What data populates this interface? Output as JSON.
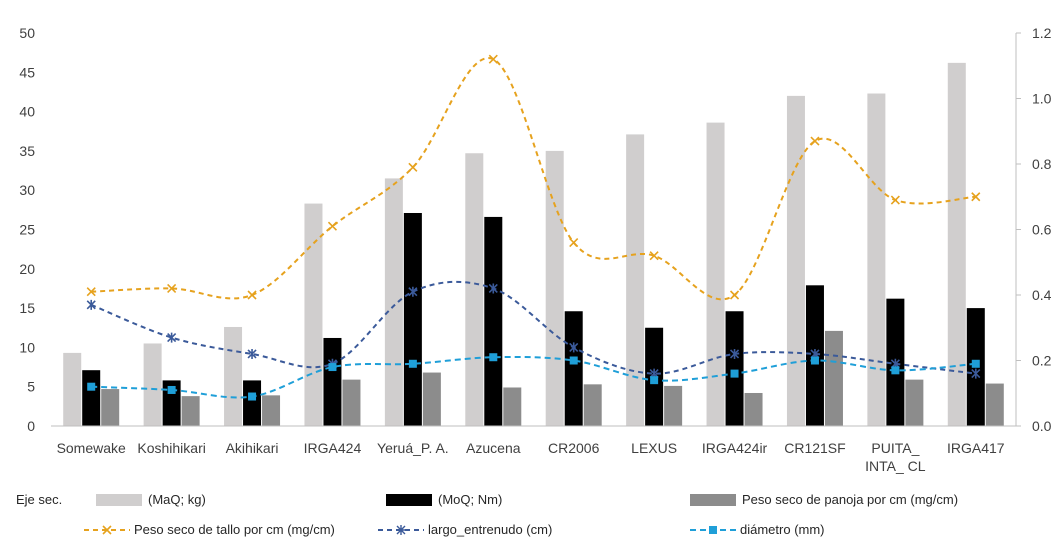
{
  "chart_data": {
    "type": "bar",
    "categories": [
      "Somewake",
      "Koshihikari",
      "Akihikari",
      "IRGA424",
      "Yeruá_P. A.",
      "Azucena",
      "CR2006",
      "LEXUS",
      "IRGA424ir",
      "CR121SF",
      "PUITA_ INTA_ CL",
      "IRGA417"
    ],
    "category_lines": [
      [
        "Somewake"
      ],
      [
        "Koshihikari"
      ],
      [
        "Akihikari"
      ],
      [
        "IRGA424"
      ],
      [
        "Yeruá_P. A."
      ],
      [
        "Azucena"
      ],
      [
        "CR2006"
      ],
      [
        "LEXUS"
      ],
      [
        "IRGA424ir"
      ],
      [
        "CR121SF"
      ],
      [
        "PUITA_",
        "INTA_ CL"
      ],
      [
        "IRGA417"
      ]
    ],
    "series": [
      {
        "name": "(MaQ; kg)",
        "type": "bar",
        "axis": "primary",
        "color": "#d0cece",
        "values": [
          9.3,
          10.5,
          12.6,
          28.3,
          31.5,
          34.7,
          35.0,
          37.1,
          38.6,
          42.0,
          42.3,
          46.2
        ]
      },
      {
        "name": "(MoQ; Nm)",
        "type": "bar",
        "axis": "primary",
        "color": "#000000",
        "values": [
          7.1,
          5.8,
          5.8,
          11.2,
          27.1,
          26.6,
          14.6,
          12.5,
          14.6,
          17.9,
          16.2,
          15.0
        ]
      },
      {
        "name": "Peso seco de panoja por cm (mg/cm)",
        "type": "bar",
        "axis": "primary",
        "color": "#8c8c8c",
        "values": [
          4.7,
          3.8,
          3.9,
          5.9,
          6.8,
          4.9,
          5.3,
          5.1,
          4.2,
          12.1,
          5.9,
          5.4
        ]
      },
      {
        "name": "Peso seco de tallo por cm (mg/cm)",
        "type": "line",
        "axis": "secondary",
        "color": "#e6a21e",
        "dash": "5,4",
        "marker": "x",
        "values": [
          0.41,
          0.42,
          0.4,
          0.61,
          0.79,
          1.12,
          0.56,
          0.52,
          0.4,
          0.87,
          0.69,
          0.7
        ]
      },
      {
        "name": "largo_entrenudo (cm)",
        "type": "line",
        "axis": "secondary",
        "color": "#3b5a9a",
        "dash": "5,4",
        "marker": "star",
        "values": [
          0.37,
          0.27,
          0.22,
          0.19,
          0.41,
          0.42,
          0.24,
          0.16,
          0.22,
          0.22,
          0.19,
          0.16
        ]
      },
      {
        "name": "diámetro (mm)",
        "type": "line",
        "axis": "secondary",
        "color": "#1f9fd8",
        "dash": "6,4",
        "marker": "square",
        "values": [
          0.12,
          0.11,
          0.09,
          0.18,
          0.19,
          0.21,
          0.2,
          0.14,
          0.16,
          0.2,
          0.17,
          0.19
        ]
      }
    ],
    "ylim": [
      0,
      50
    ],
    "yticks": [
      0,
      5,
      10,
      15,
      20,
      25,
      30,
      35,
      40,
      45,
      50
    ],
    "y2lim": [
      0,
      1.2
    ],
    "y2ticks": [
      "0.0",
      "0.2",
      "0.4",
      "0.6",
      "0.8",
      "1.0",
      "1.2"
    ],
    "grid": false,
    "legend_position": "bottom",
    "legend_label": "Eje sec."
  }
}
